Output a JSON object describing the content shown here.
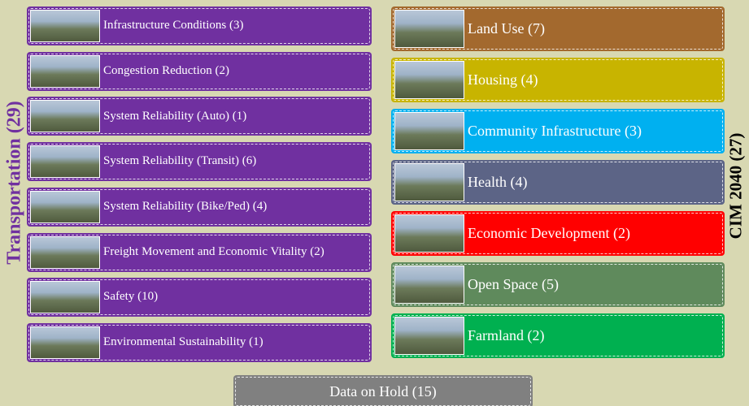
{
  "left_group": {
    "title": "Transportation (29)",
    "color": "#7030a0",
    "items": [
      {
        "label": "Infrastructure Conditions (3)"
      },
      {
        "label": "Congestion Reduction (2)"
      },
      {
        "label": "System Reliability (Auto) (1)"
      },
      {
        "label": "System Reliability (Transit) (6)"
      },
      {
        "label": "System Reliability (Bike/Ped)  (4)"
      },
      {
        "label": "Freight Movement and Economic Vitality (2)"
      },
      {
        "label": "Safety (10)"
      },
      {
        "label": "Environmental Sustainability (1)"
      }
    ]
  },
  "right_group": {
    "title": "CIM 2040 (27)",
    "items": [
      {
        "label": "Land Use (7)",
        "color": "#a3692e"
      },
      {
        "label": "Housing (4)",
        "color": "#c8b400"
      },
      {
        "label": "Community Infrastructure (3)",
        "color": "#00b0f0"
      },
      {
        "label": "Health (4)",
        "color": "#5c6486"
      },
      {
        "label": "Economic Development (2)",
        "color": "#ff0000"
      },
      {
        "label": "Open Space (5)",
        "color": "#5f8a5c"
      },
      {
        "label": "Farmland (2)",
        "color": "#00b050"
      }
    ]
  },
  "footer": {
    "label": "Data on Hold (15)",
    "color": "#808080"
  }
}
